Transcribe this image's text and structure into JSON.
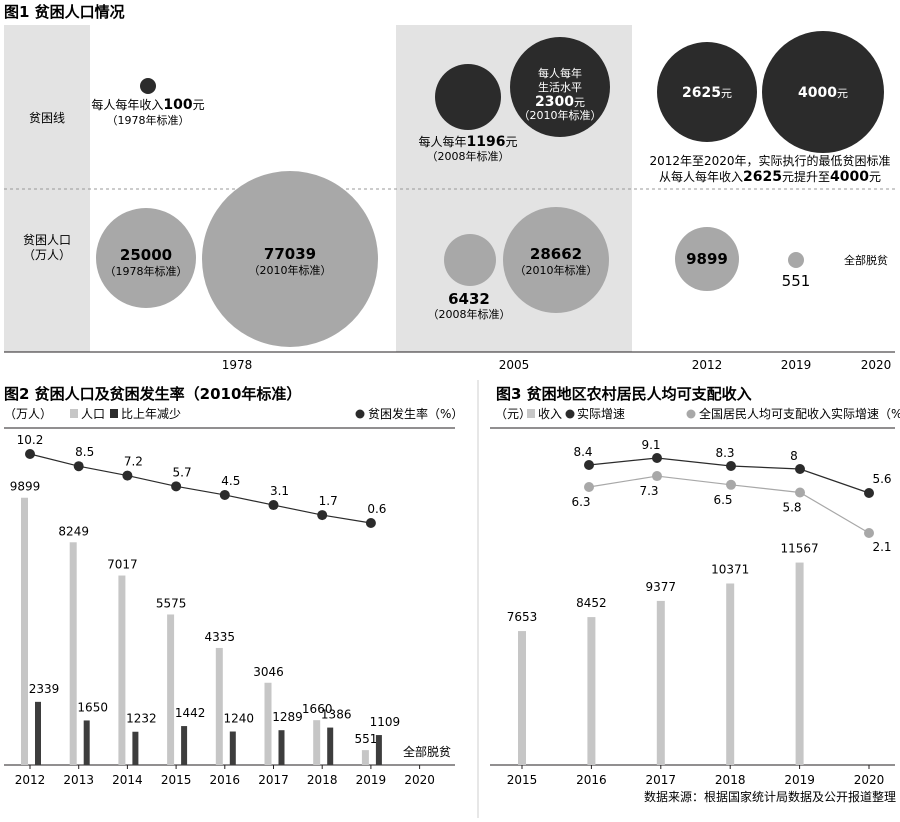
{
  "colors": {
    "dark": "#2b2b2b",
    "gray": "#a8a8a8",
    "light": "#c6c6c6",
    "panel": "#e3e3e3",
    "axis": "#231f20"
  },
  "fig1": {
    "title": "图1 贫困人口情况",
    "row_poverty_line": "贫困线",
    "row_population_1": "贫困人口",
    "row_population_2": "（万人）",
    "years": [
      "1978",
      "2005",
      "2012",
      "2019",
      "2020"
    ],
    "line_1978": {
      "l1_pre": "每人每年收入",
      "value": "100",
      "l1_post": "元",
      "l2": "（1978年标准）"
    },
    "line_2005a": {
      "l1_pre": "每人每年",
      "value": "1196",
      "l1_post": "元",
      "l2": "（2008年标准）"
    },
    "line_2005b": {
      "l1": "每人每年",
      "l2": "生活水平",
      "value": "2300",
      "l2_post": "元",
      "l4": "（2010年标准）"
    },
    "line_2012a": {
      "value": "2625",
      "unit": "元"
    },
    "line_2012b": {
      "value": "4000",
      "unit": "元"
    },
    "note_1": "2012年至2020年，实际执行的最低贫困标准",
    "note_2_pre": "从每人每年收入",
    "note_2_v1": "2625",
    "note_2_mid": "元提升至",
    "note_2_v2": "4000",
    "note_2_post": "元",
    "pop_1978a": {
      "value": "25000",
      "std": "（1978年标准）"
    },
    "pop_1978b": {
      "value": "77039",
      "std": "（2010年标准）"
    },
    "pop_2005a": {
      "value": "6432",
      "std": "（2008年标准）"
    },
    "pop_2005b": {
      "value": "28662",
      "std": "（2010年标准）"
    },
    "pop_2012": {
      "value": "9899"
    },
    "pop_2019": {
      "value": "551"
    },
    "pop_2020": {
      "value": "全部脱贫"
    }
  },
  "chart_data": [
    {
      "type": "bar",
      "title": "图2 贫困人口及贫困发生率（2010年标准）",
      "legend_unit": "（万人）",
      "legend": [
        "人口",
        "比上年减少",
        "贫困发生率（%）"
      ],
      "categories": [
        "2012",
        "2013",
        "2014",
        "2015",
        "2016",
        "2017",
        "2018",
        "2019",
        "2020"
      ],
      "series": [
        {
          "name": "人口",
          "values": [
            9899,
            8249,
            7017,
            5575,
            4335,
            3046,
            1660,
            551,
            null
          ]
        },
        {
          "name": "比上年减少",
          "values": [
            2339,
            1650,
            1232,
            1442,
            1240,
            1289,
            1386,
            1109,
            null
          ]
        },
        {
          "name": "贫困发生率（%）",
          "type": "line",
          "values": [
            10.2,
            8.5,
            7.2,
            5.7,
            4.5,
            3.1,
            1.7,
            0.6,
            null
          ]
        }
      ],
      "annotation_2020": "全部脱贫",
      "ylim": [
        0,
        10000
      ]
    },
    {
      "type": "bar",
      "title": "图3 贫困地区农村居民人均可支配收入",
      "legend_unit": "（元）",
      "legend": [
        "收入",
        "实际增速",
        "全国居民人均可支配收入实际增速（%）"
      ],
      "categories": [
        "2015",
        "2016",
        "2017",
        "2018",
        "2019",
        "2020"
      ],
      "series": [
        {
          "name": "收入",
          "values": [
            7653,
            8452,
            9377,
            10371,
            11567,
            null
          ]
        },
        {
          "name": "实际增速",
          "type": "line",
          "values": [
            8.4,
            null,
            9.1,
            8.3,
            8,
            5.6
          ]
        },
        {
          "name": "全国居民人均可支配收入实际增速（%）",
          "type": "line",
          "values": [
            6.3,
            null,
            7.3,
            6.5,
            5.8,
            2.1
          ]
        }
      ],
      "ylim": [
        0,
        12000
      ]
    }
  ],
  "source": "数据来源：根据国家统计局数据及公开报道整理"
}
